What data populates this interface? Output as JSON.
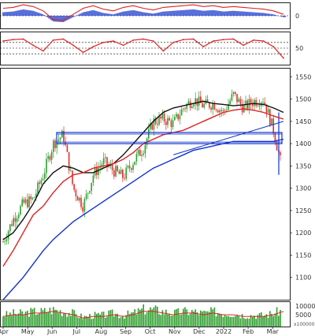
{
  "chart_data": {
    "type": "line",
    "months": [
      "Apr",
      "May",
      "Jun",
      "Jul",
      "Aug",
      "Sep",
      "Oct",
      "Nov",
      "Dec",
      "2022",
      "Feb",
      "Mar"
    ],
    "price_panel": {
      "ylim": [
        1050,
        1570
      ],
      "yticks": [
        1100,
        1150,
        1200,
        1250,
        1300,
        1350,
        1400,
        1450,
        1500,
        1550
      ],
      "series": [
        {
          "key": "close",
          "type": "candlestick",
          "color_up": "#2e9e2e",
          "color_down": "#e03030",
          "values": [
            1180,
            1230,
            1265,
            1275,
            1330,
            1400,
            1420,
            1300,
            1260,
            1330,
            1360,
            1340,
            1325,
            1360,
            1390,
            1450,
            1455,
            1445,
            1480,
            1500,
            1485,
            1490,
            1470,
            1510,
            1480,
            1495,
            1500,
            1430,
            1330
          ]
        },
        {
          "key": "ma_black",
          "type": "line",
          "color": "#111111",
          "values": [
            1185,
            1200,
            1230,
            1265,
            1310,
            1335,
            1350,
            1345,
            1335,
            1335,
            1345,
            1355,
            1375,
            1400,
            1425,
            1450,
            1470,
            1480,
            1485,
            1490,
            1495,
            1490,
            1488,
            1485,
            1487,
            1490,
            1488,
            1480,
            1470
          ]
        },
        {
          "key": "ma_red",
          "type": "line",
          "color": "#dd2222",
          "values": [
            1125,
            1160,
            1200,
            1240,
            1260,
            1290,
            1315,
            1330,
            1335,
            1345,
            1350,
            1355,
            1365,
            1380,
            1400,
            1410,
            1420,
            1425,
            1430,
            1440,
            1450,
            1460,
            1470,
            1475,
            1478,
            1475,
            1470,
            1462,
            1455
          ]
        },
        {
          "key": "ma_blue",
          "type": "line",
          "color": "#1133cc",
          "values": [
            1050,
            1075,
            1100,
            1130,
            1160,
            1185,
            1205,
            1225,
            1240,
            1255,
            1270,
            1285,
            1300,
            1315,
            1330,
            1345,
            1355,
            1365,
            1375,
            1385,
            1390,
            1395,
            1400,
            1405,
            1405,
            1405,
            1405,
            1405,
            1410
          ]
        }
      ],
      "support_zone": [
        1400,
        1425
      ],
      "trendline": {
        "from": [
          17,
          1375
        ],
        "to": [
          28,
          1450
        ]
      }
    },
    "oscillator1": {
      "zero_label": "0",
      "color_line": "#dd2222",
      "color_hist": "#1133cc",
      "values": [
        0.5,
        0.6,
        0.9,
        0.7,
        0.2,
        -0.8,
        -0.9,
        -0.2,
        0.5,
        0.8,
        0.4,
        0.2,
        0.6,
        0.8,
        0.5,
        0.3,
        0.6,
        0.7,
        0.8,
        0.9,
        0.7,
        0.8,
        0.6,
        0.7,
        0.6,
        0.5,
        0.4,
        0.2,
        -0.2
      ]
    },
    "oscillator2": {
      "level_label": "50",
      "levels": [
        30,
        50,
        70
      ],
      "color": "#dd2222",
      "values": [
        75,
        80,
        82,
        60,
        40,
        78,
        82,
        60,
        35,
        55,
        70,
        75,
        60,
        78,
        82,
        75,
        40,
        70,
        80,
        82,
        55,
        75,
        80,
        82,
        60,
        78,
        75,
        55,
        15
      ]
    },
    "volume_panel": {
      "yticks": [
        10000,
        5000
      ],
      "unit_label": "x100000",
      "color": "#2e9e2e",
      "values": [
        6,
        7,
        7,
        8,
        8,
        9,
        8,
        7,
        5,
        6,
        6,
        7,
        6,
        7,
        9,
        9,
        8,
        7,
        8,
        8,
        7,
        8,
        7,
        7,
        6,
        6,
        6,
        7,
        9
      ]
    }
  }
}
